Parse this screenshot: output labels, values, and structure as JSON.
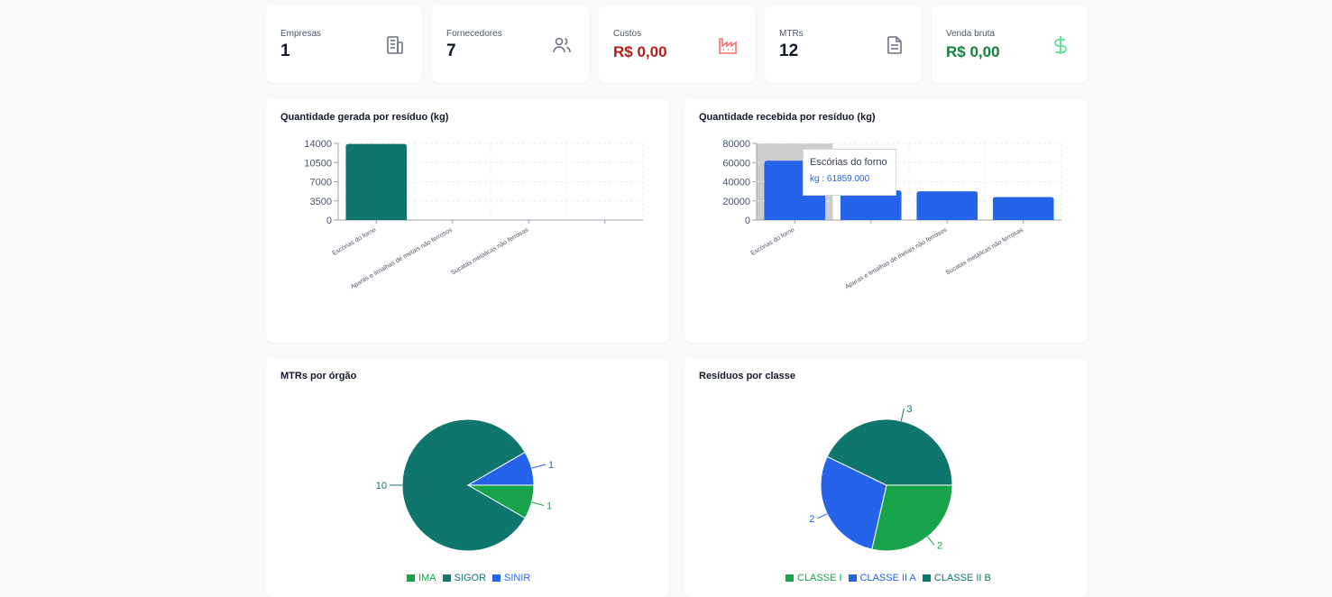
{
  "colors": {
    "teal": "#0f766e",
    "blue": "#2563eb",
    "green": "#16a34a",
    "red": "#b91c1c",
    "icon_gray": "#6b7280"
  },
  "stats": [
    {
      "label": "Empresas",
      "value": "1",
      "icon": "building-icon"
    },
    {
      "label": "Fornecedores",
      "value": "7",
      "icon": "users-icon"
    },
    {
      "label": "Custos",
      "value": "R$ 0,00",
      "icon": "factory-icon"
    },
    {
      "label": "MTRs",
      "value": "12",
      "icon": "file-text-icon"
    },
    {
      "label": "Venda bruta",
      "value": "R$ 0,00",
      "icon": "dollar-icon"
    }
  ],
  "cards": {
    "generated": {
      "title": "Quantidade gerada por resíduo (kg)"
    },
    "received": {
      "title": "Quantidade recebida por resíduo (kg)"
    },
    "mtrs": {
      "title": "MTRs por órgão"
    },
    "classes": {
      "title": "Resíduos por classe"
    }
  },
  "tooltip": {
    "name": "Escórias do forno",
    "value": "kg : 61859.000"
  },
  "chart_data": [
    {
      "type": "bar",
      "title": "Quantidade gerada por resíduo (kg)",
      "categories": [
        "Escórias do forno",
        "Aparas e limalhas de metais não ferrosos",
        "Sucatas metálicas não ferrosas",
        ""
      ],
      "values": [
        13900,
        0,
        0,
        0
      ],
      "yticks": [
        "0",
        "3500",
        "7000",
        "10500",
        "14000"
      ],
      "ylim": [
        0,
        14000
      ],
      "color": "#0f766e",
      "grid": true
    },
    {
      "type": "bar",
      "title": "Quantidade recebida por resíduo (kg)",
      "categories": [
        "Escórias do forno",
        "",
        "Aparas e limalhas de metais não ferrosos",
        "Sucatas metálicas não ferrosas"
      ],
      "values": [
        61859,
        31000,
        30000,
        24000
      ],
      "yticks": [
        "0",
        "20000",
        "40000",
        "60000",
        "80000"
      ],
      "ylim": [
        0,
        80000
      ],
      "color": "#2563eb",
      "grid": true,
      "highlighted_index": 0
    },
    {
      "type": "pie",
      "title": "MTRs por órgão",
      "labels": [
        "IMA",
        "SIGOR",
        "SINIR"
      ],
      "values": [
        1,
        10,
        1
      ],
      "colors": [
        "#16a34a",
        "#0f766e",
        "#2563eb"
      ],
      "legend": "bottom"
    },
    {
      "type": "pie",
      "title": "Resíduos por classe",
      "labels": [
        "CLASSE I",
        "CLASSE II A",
        "CLASSE II B"
      ],
      "values": [
        2,
        2,
        3
      ],
      "colors": [
        "#16a34a",
        "#2563eb",
        "#0f766e"
      ],
      "legend": "bottom"
    }
  ]
}
